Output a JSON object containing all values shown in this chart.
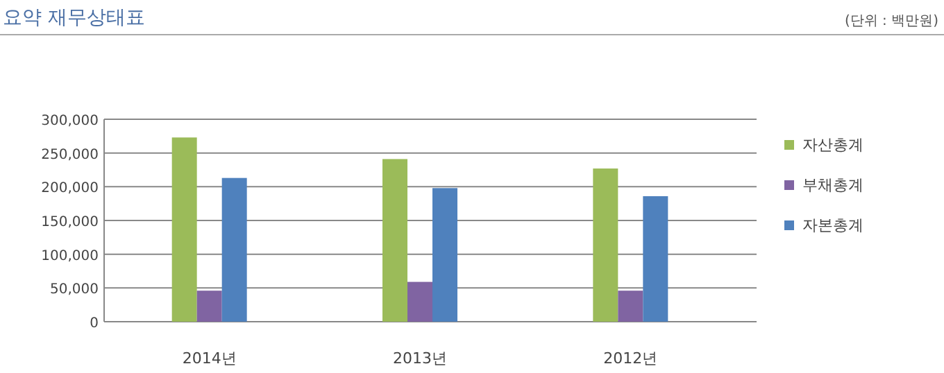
{
  "chart_data": {
    "type": "bar",
    "title": "요약 재무상태표",
    "annotations": [
      "(단위 : 백만원)"
    ],
    "categories": [
      "2014년",
      "2013년",
      "2012년"
    ],
    "series": [
      {
        "name": "자산총계",
        "color": "#9bbb59",
        "values": [
          273000,
          241000,
          227000
        ]
      },
      {
        "name": "부채총계",
        "color": "#8064a2",
        "values": [
          46000,
          59000,
          46000
        ]
      },
      {
        "name": "자본총계",
        "color": "#4f81bd",
        "values": [
          213000,
          198000,
          186000
        ]
      }
    ],
    "ylim": [
      0,
      300000
    ],
    "yticks": [
      {
        "value": 0,
        "label": "0"
      },
      {
        "value": 50000,
        "label": "50,000"
      },
      {
        "value": 100000,
        "label": "100,000"
      },
      {
        "value": 150000,
        "label": "150,000"
      },
      {
        "value": 200000,
        "label": "200,000"
      },
      {
        "value": 250000,
        "label": "250,000"
      },
      {
        "value": 300000,
        "label": "300,000"
      }
    ],
    "grid": "y",
    "legend": "right"
  }
}
